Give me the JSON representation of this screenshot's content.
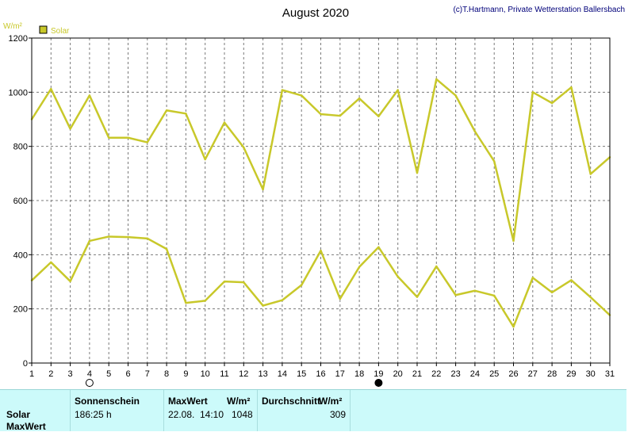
{
  "header": {
    "title": "August 2020",
    "copyright": "(c)T.Hartmann, Private Wetterstation Ballersbach"
  },
  "colors": {
    "series": "#c8c82a",
    "legend_box": "#c8c82a",
    "grid": "#7a7a7a",
    "footer_bg": "#ccfafa"
  },
  "chart_data": {
    "type": "line",
    "title": "August 2020",
    "ylabel": "W/m²",
    "xlabel": "",
    "ylim": [
      0,
      1200
    ],
    "yticks": [
      0,
      200,
      400,
      600,
      800,
      1000,
      1200
    ],
    "x": [
      1,
      2,
      3,
      4,
      5,
      6,
      7,
      8,
      9,
      10,
      11,
      12,
      13,
      14,
      15,
      16,
      17,
      18,
      19,
      20,
      21,
      22,
      23,
      24,
      25,
      26,
      27,
      28,
      29,
      30,
      31
    ],
    "grid": true,
    "legend": "top-left",
    "series": [
      {
        "name": "Solar",
        "role": "max",
        "values": [
          900,
          1012,
          865,
          988,
          832,
          832,
          815,
          933,
          921,
          752,
          888,
          796,
          641,
          1008,
          988,
          919,
          913,
          977,
          911,
          1008,
          702,
          1048,
          988,
          855,
          745,
          451,
          1000,
          960,
          1018,
          698,
          760
        ]
      },
      {
        "role": "mean",
        "values": [
          305,
          372,
          302,
          451,
          467,
          465,
          460,
          421,
          222,
          230,
          301,
          298,
          212,
          232,
          288,
          415,
          237,
          355,
          428,
          319,
          244,
          357,
          251,
          267,
          249,
          134,
          315,
          261,
          306,
          243,
          177
        ]
      }
    ],
    "moon_markers": [
      {
        "day": 4,
        "phase": "full-moon"
      },
      {
        "day": 19,
        "phase": "new-moon"
      }
    ]
  },
  "footer": {
    "row_label_1": "Solar",
    "row_label_2": "MaxWert",
    "sunshine_header": "Sonnenschein",
    "sunshine_value": "186:25 h",
    "max_header": "MaxWert",
    "max_unit": "W/m²",
    "max_date": "22.08.",
    "max_time": "14:10",
    "max_value": "1048",
    "avg_header": "Durchschnitt",
    "avg_unit": "W/m²",
    "avg_value": "309"
  }
}
